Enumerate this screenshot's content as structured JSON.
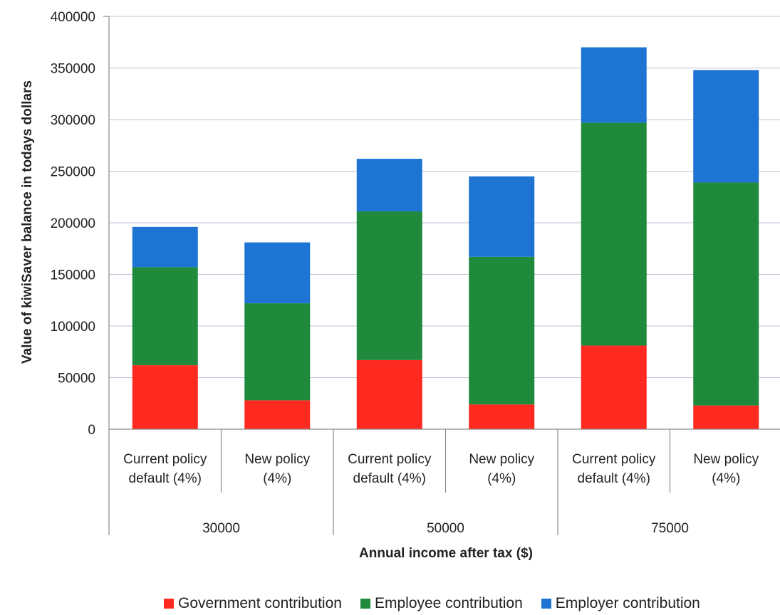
{
  "chart_data": {
    "type": "bar",
    "stacked": true,
    "title": "",
    "ylabel": "Value of kiwiSaver balance in todays dollars",
    "xlabel": "Annual income after tax ($)",
    "ylim": [
      0,
      400000
    ],
    "yticks": [
      "0",
      "50000",
      "100000",
      "150000",
      "200000",
      "250000",
      "300000",
      "350000",
      "400000"
    ],
    "grid": true,
    "legend_position": "bottom",
    "groups": [
      {
        "label": "30000",
        "categories": [
          "Current policy default (4%)",
          "New policy (4%)"
        ]
      },
      {
        "label": "50000",
        "categories": [
          "Current policy default (4%)",
          "New policy (4%)"
        ]
      },
      {
        "label": "75000",
        "categories": [
          "Current policy default (4%)",
          "New policy (4%)"
        ]
      }
    ],
    "category_lines": [
      [
        "Current policy",
        "default (4%)"
      ],
      [
        "New policy",
        "(4%)"
      ],
      [
        "Current policy",
        "default (4%)"
      ],
      [
        "New policy",
        "(4%)"
      ],
      [
        "Current policy",
        "default (4%)"
      ],
      [
        "New policy",
        "(4%)"
      ]
    ],
    "series": [
      {
        "name": "Government contribution",
        "color": "#ff2a1f",
        "values": [
          62000,
          28000,
          67000,
          24000,
          81000,
          23000
        ]
      },
      {
        "name": "Employee contribution",
        "color": "#1f8a3c",
        "values": [
          95000,
          94000,
          144000,
          143000,
          216000,
          216000
        ]
      },
      {
        "name": "Employer contribution",
        "color": "#1d74d3",
        "values": [
          39000,
          59000,
          51000,
          78000,
          73000,
          109000
        ]
      }
    ]
  }
}
